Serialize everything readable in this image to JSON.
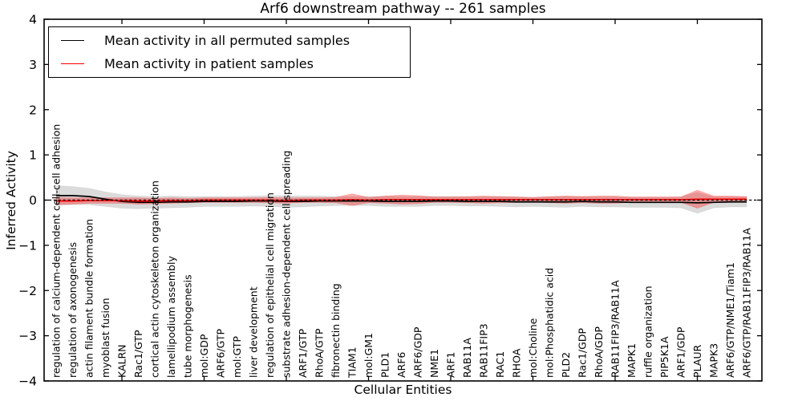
{
  "chart_data": {
    "type": "line",
    "title": "Arf6 downstream pathway -- 261 samples",
    "xlabel": "Cellular Entities",
    "ylabel": "Inferred Activity",
    "ylim": [
      -4,
      4
    ],
    "grid": false,
    "legend_position": "upper left",
    "yticks": [
      {
        "value": 4,
        "label": "4"
      },
      {
        "value": 3,
        "label": "3"
      },
      {
        "value": 2,
        "label": "2"
      },
      {
        "value": 1,
        "label": "1"
      },
      {
        "value": 0,
        "label": "0"
      },
      {
        "value": -1,
        "label": "−1"
      },
      {
        "value": -2,
        "label": "−2"
      },
      {
        "value": -3,
        "label": "−3"
      },
      {
        "value": -4,
        "label": "−4"
      }
    ],
    "xtick_indices": [
      4,
      9,
      14,
      19,
      24,
      29,
      34,
      39
    ],
    "categories": [
      "regulation of calcium-dependent cell-cell adhesion",
      "regulation of axonogenesis",
      "actin filament bundle formation",
      "myoblast fusion",
      "KALRN",
      "Rac1/GTP",
      "cortical actin cytoskeleton organization",
      "lamellipodium assembly",
      "tube morphogenesis",
      "mol:GDP",
      "ARF6/GTP",
      "mol:GTP",
      "liver development",
      "regulation of epithelial cell migration",
      "substrate adhesion-dependent cell spreading",
      "ARF1/GTP",
      "RhoA/GTP",
      "fibronectin binding",
      "TIAM1",
      "mol:GM1",
      "PLD1",
      "ARF6",
      "ARF6/GDP",
      "NME1",
      "ARF1",
      "RAB11A",
      "RAB11FIP3",
      "RAC1",
      "RHOA",
      "mol:Choline",
      "mol:Phosphatidic acid",
      "PLD2",
      "Rac1/GDP",
      "RhoA/GDP",
      "RAB11FIP3/RAB11A",
      "MAPK1",
      "ruffle organization",
      "PIP5K1A",
      "ARF1/GDP",
      "PLAUR",
      "MAPK3",
      "ARF6/GTP/NME1/Tiam1",
      "ARF6/GTP/RAB11FIP3/RAB11A"
    ],
    "series": [
      {
        "name": "Mean activity in all permuted samples",
        "color": "#000000",
        "values": [
          0.1,
          0.1,
          0.08,
          0.02,
          -0.03,
          -0.05,
          -0.05,
          -0.04,
          -0.04,
          -0.03,
          -0.03,
          -0.03,
          -0.02,
          -0.02,
          -0.03,
          -0.03,
          -0.02,
          -0.02,
          -0.02,
          -0.02,
          -0.03,
          -0.03,
          -0.03,
          -0.02,
          -0.02,
          -0.03,
          -0.03,
          -0.03,
          -0.04,
          -0.04,
          -0.04,
          -0.04,
          -0.03,
          -0.04,
          -0.04,
          -0.05,
          -0.05,
          -0.05,
          -0.05,
          -0.06,
          -0.05,
          -0.04,
          -0.04
        ]
      },
      {
        "name": "Mean activity in patient samples",
        "color": "#ff0000",
        "values": [
          -0.02,
          -0.02,
          -0.01,
          -0.01,
          -0.01,
          -0.02,
          -0.02,
          -0.01,
          -0.01,
          0.0,
          0.0,
          0.0,
          0.0,
          0.0,
          -0.01,
          0.0,
          0.0,
          0.0,
          0.01,
          0.0,
          0.01,
          0.01,
          0.01,
          0.01,
          0.01,
          0.01,
          0.01,
          0.01,
          0.01,
          0.01,
          0.01,
          0.01,
          0.01,
          0.01,
          0.01,
          0.01,
          0.01,
          0.01,
          0.01,
          0.02,
          0.02,
          0.02,
          0.02
        ]
      }
    ],
    "bands": [
      {
        "name": "permuted-std-band",
        "center_series": 0,
        "color": "#aaaaaa",
        "fill_opacity": 0.42,
        "halfwidths": [
          0.22,
          0.2,
          0.18,
          0.16,
          0.15,
          0.14,
          0.13,
          0.13,
          0.12,
          0.11,
          0.11,
          0.11,
          0.11,
          0.12,
          0.13,
          0.12,
          0.11,
          0.1,
          0.1,
          0.1,
          0.11,
          0.11,
          0.11,
          0.1,
          0.1,
          0.1,
          0.1,
          0.11,
          0.11,
          0.1,
          0.11,
          0.12,
          0.11,
          0.11,
          0.11,
          0.11,
          0.11,
          0.11,
          0.12,
          0.23,
          0.12,
          0.11,
          0.11
        ]
      },
      {
        "name": "patient-std-band",
        "center_series": 1,
        "color": "#ff0000",
        "fill_opacity": 0.32,
        "halfwidths": [
          0.08,
          0.07,
          0.06,
          0.06,
          0.06,
          0.07,
          0.06,
          0.06,
          0.05,
          0.05,
          0.05,
          0.05,
          0.05,
          0.06,
          0.06,
          0.05,
          0.05,
          0.06,
          0.13,
          0.06,
          0.08,
          0.1,
          0.09,
          0.06,
          0.06,
          0.07,
          0.08,
          0.07,
          0.06,
          0.05,
          0.07,
          0.08,
          0.07,
          0.08,
          0.08,
          0.06,
          0.06,
          0.06,
          0.06,
          0.2,
          0.07,
          0.07,
          0.06
        ]
      }
    ],
    "zero_line": {
      "value": 0,
      "color": "#000000",
      "style": "dashed"
    }
  }
}
